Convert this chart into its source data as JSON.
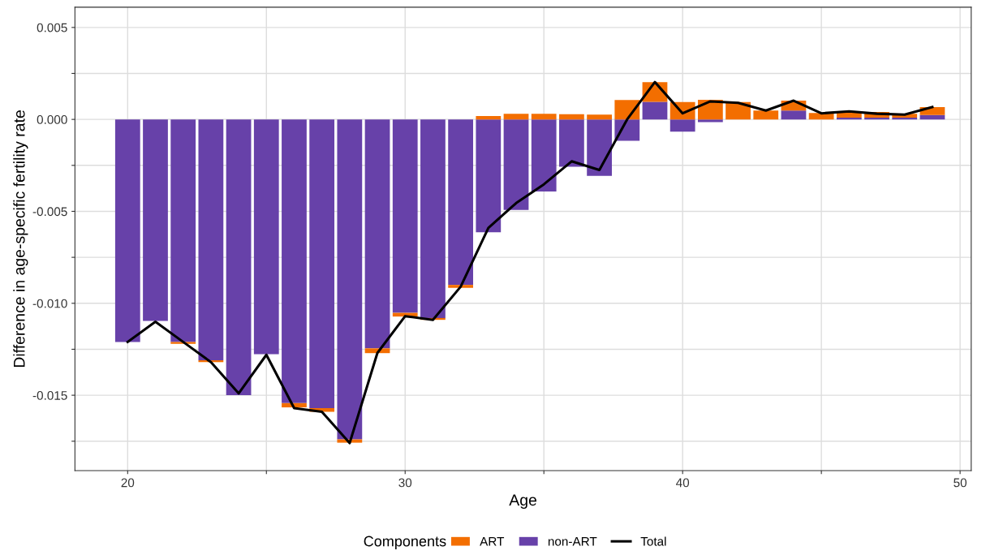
{
  "chart_data": {
    "type": "bar",
    "stacked": true,
    "xlabel": "Age",
    "ylabel": "Difference in age-specific fertility rate",
    "legend_title": "Components",
    "legend": "bottom",
    "grid": true,
    "x": [
      20,
      21,
      22,
      23,
      24,
      25,
      26,
      27,
      28,
      29,
      30,
      31,
      32,
      33,
      34,
      35,
      36,
      37,
      38,
      39,
      40,
      41,
      42,
      43,
      44,
      45,
      46,
      47,
      48,
      49
    ],
    "series": [
      {
        "name": "non-ART",
        "color": "#6741a9",
        "values": [
          -0.0121,
          -0.01096,
          -0.0121,
          -0.0131,
          -0.015,
          -0.01277,
          -0.01543,
          -0.0157,
          -0.0174,
          -0.01245,
          -0.01052,
          -0.0108,
          -0.009,
          -0.00614,
          -0.00492,
          -0.00392,
          -0.00257,
          -0.00307,
          -0.00116,
          0.00096,
          -0.00067,
          -0.00015,
          0.0,
          0.0,
          0.00048,
          0.0,
          0.0001,
          0.0001,
          0.0001,
          0.00024
        ]
      },
      {
        "name": "ART",
        "color": "#f36e00",
        "values": [
          0.0,
          0.0,
          -0.0001,
          -0.0001,
          0.0,
          0.0,
          -0.00023,
          -0.0002,
          -0.00018,
          -0.00026,
          -0.0002,
          -0.0001,
          -0.00016,
          0.00018,
          0.0003,
          0.0003,
          0.00028,
          0.00026,
          0.00105,
          0.00107,
          0.00094,
          0.00107,
          0.00094,
          0.00048,
          0.00054,
          0.00035,
          0.0003,
          0.0003,
          0.0002,
          0.00043
        ]
      },
      {
        "name": "Total",
        "type": "line",
        "color": "#000000",
        "values": [
          -0.0121,
          -0.011,
          -0.0121,
          -0.0132,
          -0.0149,
          -0.0128,
          -0.0157,
          -0.0159,
          -0.0176,
          -0.0127,
          -0.0107,
          -0.0109,
          -0.0091,
          -0.0059,
          -0.00455,
          -0.00353,
          -0.00228,
          -0.00275,
          0.0,
          0.00203,
          0.00033,
          0.00098,
          0.0009,
          0.00048,
          0.00102,
          0.00033,
          0.00044,
          0.00031,
          0.00026,
          0.00067
        ]
      }
    ],
    "xlim": [
      18.1,
      50.4
    ],
    "xticks": [
      20,
      {
        "value": 25,
        "label": null
      },
      30,
      {
        "value": 35,
        "label": null
      },
      40,
      {
        "value": 45,
        "label": null
      },
      50
    ],
    "ylim": [
      -0.0191,
      0.0061
    ],
    "yticks": [
      {
        "value": -0.0175,
        "label": null
      },
      {
        "value": -0.015,
        "label": "-0.015"
      },
      {
        "value": -0.0125,
        "label": null
      },
      {
        "value": -0.01,
        "label": "-0.010"
      },
      {
        "value": -0.0075,
        "label": null
      },
      {
        "value": -0.005,
        "label": "-0.005"
      },
      {
        "value": -0.0025,
        "label": null
      },
      {
        "value": 0,
        "label": "0.000"
      },
      {
        "value": 0.0025,
        "label": null
      },
      {
        "value": 0.005,
        "label": "0.005"
      }
    ]
  }
}
